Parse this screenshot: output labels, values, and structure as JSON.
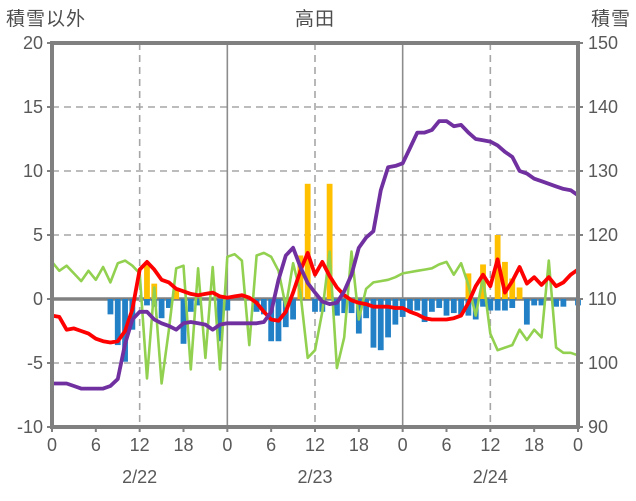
{
  "header": {
    "left_axis_title": "積雪以外",
    "title": "高田",
    "right_axis_title": "積雪"
  },
  "colors": {
    "frame": "#808080",
    "grid": "#a6a6a6",
    "zero_line": "#808080",
    "tick_text": "#595959",
    "header_text": "#4d4d4d",
    "orange_bar": "#FFC000",
    "blue_bar": "#2280C6",
    "green_line": "#92D050",
    "red_line": "#FF0000",
    "purple_line": "#7030A0"
  },
  "chart_data": {
    "type": "combo",
    "title": "高田",
    "left_axis": {
      "title": "積雪以外",
      "min": -10,
      "max": 20,
      "ticks": [
        20,
        15,
        10,
        5,
        0,
        -5,
        -10
      ]
    },
    "right_axis": {
      "title": "積雪",
      "min": 90,
      "max": 150,
      "ticks": [
        150,
        140,
        130,
        120,
        110,
        100,
        90
      ]
    },
    "x": {
      "hours_total": 72,
      "tick_step": 6,
      "hour_tick_labels": [
        "0",
        "6",
        "12",
        "18",
        "0",
        "6",
        "12",
        "18",
        "0",
        "6",
        "12",
        "18",
        "0"
      ],
      "date_labels": [
        {
          "text": "2/22",
          "hour": 12
        },
        {
          "text": "2/23",
          "hour": 36
        },
        {
          "text": "2/24",
          "hour": 60
        }
      ],
      "vertical_gridlines": [
        {
          "hour": 12,
          "style": "dashed"
        },
        {
          "hour": 24,
          "style": "solid"
        },
        {
          "hour": 36,
          "style": "dashed"
        },
        {
          "hour": 48,
          "style": "solid"
        },
        {
          "hour": 60,
          "style": "dashed"
        }
      ]
    },
    "grid": "horizontal dashed every 5 left-units / 10 right-units; thick solid line at left 0 (right 110)",
    "legend": "none",
    "series": [
      {
        "name": "orange-bars",
        "type": "bar",
        "axis": "left",
        "color": "#FFC000",
        "values": [
          0,
          0,
          0,
          0,
          0,
          0,
          0,
          0,
          0,
          0,
          0,
          0,
          0,
          2.9,
          1.2,
          0,
          0,
          0.9,
          0,
          0,
          0,
          0,
          0,
          0,
          0,
          0,
          0,
          0,
          0,
          0,
          0,
          0,
          0,
          0,
          3.4,
          9,
          0,
          0,
          9,
          0,
          0,
          0,
          0,
          0,
          0,
          0,
          0,
          0,
          0,
          0,
          0,
          0,
          0,
          0,
          0,
          0,
          0,
          2,
          0,
          2.7,
          0,
          5,
          2.9,
          1.6,
          0.9,
          0,
          0,
          0,
          0,
          0,
          0,
          0,
          0
        ]
      },
      {
        "name": "blue-bars",
        "type": "bar",
        "axis": "left",
        "color": "#2280C6",
        "values": [
          0,
          0,
          0,
          0,
          0,
          0,
          0,
          0,
          -1.2,
          -3.6,
          -4.9,
          -2.4,
          0,
          -0.5,
          -0.6,
          -1.5,
          -0.7,
          0,
          -3.5,
          -1.0,
          -0.5,
          0,
          0,
          -3.3,
          -0.9,
          0,
          0,
          0,
          -1.0,
          -1.2,
          -3.3,
          -3.3,
          -2.2,
          -1.6,
          0,
          0,
          -1.0,
          -1.0,
          0,
          -1.3,
          -1.1,
          -1.1,
          -2.7,
          -1.5,
          -3.8,
          -4.0,
          -3.0,
          -2.0,
          -1.4,
          -1.0,
          -0.9,
          -1.8,
          -1.0,
          -0.7,
          -1.3,
          -1.1,
          -1.2,
          -1.3,
          -1.6,
          -0.6,
          -0.9,
          -0.9,
          -0.9,
          -0.7,
          0,
          -2.0,
          -0.5,
          -0.5,
          0,
          -0.6,
          -0.6,
          0,
          -0.5
        ]
      },
      {
        "name": "green-line",
        "type": "line",
        "axis": "left",
        "color": "#92D050",
        "values": [
          2.9,
          2.2,
          2.6,
          2.0,
          1.4,
          2.2,
          1.5,
          2.5,
          1.3,
          2.8,
          3.0,
          2.6,
          2.0,
          -6.2,
          0.9,
          -6.6,
          -2.4,
          2.4,
          2.6,
          -5.5,
          2.4,
          -4.6,
          2.5,
          -5.5,
          3.3,
          3.5,
          3.0,
          -3.6,
          3.4,
          3.6,
          3.3,
          2.2,
          -0.6,
          2.8,
          0.5,
          -4.6,
          -4.0,
          -1.0,
          3.7,
          -5.4,
          -3.0,
          3.7,
          -1.6,
          0.8,
          1.3,
          1.4,
          1.5,
          1.7,
          2.0,
          2.1,
          2.2,
          2.3,
          2.4,
          2.7,
          2.9,
          1.9,
          2.8,
          1.1,
          -1.3,
          1.7,
          -2.7,
          -4.0,
          -3.8,
          -3.6,
          -2.4,
          -3.2,
          -2.4,
          -3.0,
          3.0,
          -3.8,
          -4.2,
          -4.2,
          -4.4
        ]
      },
      {
        "name": "red-line",
        "type": "line",
        "axis": "left",
        "color": "#FF0000",
        "values": [
          -1.3,
          -1.4,
          -2.4,
          -2.3,
          -2.5,
          -2.7,
          -3.1,
          -3.3,
          -3.4,
          -3.3,
          -2.5,
          -0.8,
          2.3,
          2.9,
          2.3,
          1.5,
          1.3,
          0.8,
          0.6,
          0.4,
          0.3,
          0.4,
          0.5,
          0.2,
          0.1,
          0.2,
          0.3,
          0.1,
          -0.3,
          -1.0,
          -1.6,
          -1.7,
          -1.0,
          0.5,
          2.2,
          3.6,
          1.9,
          2.9,
          1.8,
          0.9,
          0.3,
          -0.1,
          -0.3,
          -0.4,
          -0.6,
          -0.6,
          -0.6,
          -0.7,
          -0.7,
          -1.0,
          -1.2,
          -1.5,
          -1.6,
          -1.6,
          -1.6,
          -1.5,
          -1.3,
          -0.3,
          1.0,
          1.9,
          1.0,
          3.1,
          0.5,
          1.4,
          2.5,
          1.2,
          1.7,
          1.1,
          1.7,
          1.0,
          1.3,
          1.9,
          2.3
        ]
      },
      {
        "name": "purple-line",
        "type": "line",
        "axis": "right",
        "color": "#7030A0",
        "values": [
          96.8,
          96.8,
          96.8,
          96.4,
          96,
          96,
          96,
          96,
          96.4,
          97.5,
          103,
          106.8,
          108,
          108,
          106.8,
          106.2,
          105.8,
          105.2,
          106.2,
          106.4,
          106.2,
          106,
          105.2,
          106,
          106.2,
          106.2,
          106.2,
          106.2,
          106.2,
          106.4,
          108,
          113,
          116.8,
          118,
          115,
          112.5,
          111,
          109.6,
          109.2,
          109.4,
          111.2,
          113.8,
          118,
          119.6,
          120.6,
          127,
          130.6,
          130.8,
          131.2,
          133.6,
          136,
          136,
          136.4,
          137.8,
          137.8,
          137,
          137.2,
          136,
          135,
          134.8,
          134.6,
          134,
          133,
          132.2,
          130,
          129.6,
          128.8,
          128.4,
          128,
          127.6,
          127.2,
          127,
          126.2
        ]
      }
    ]
  }
}
